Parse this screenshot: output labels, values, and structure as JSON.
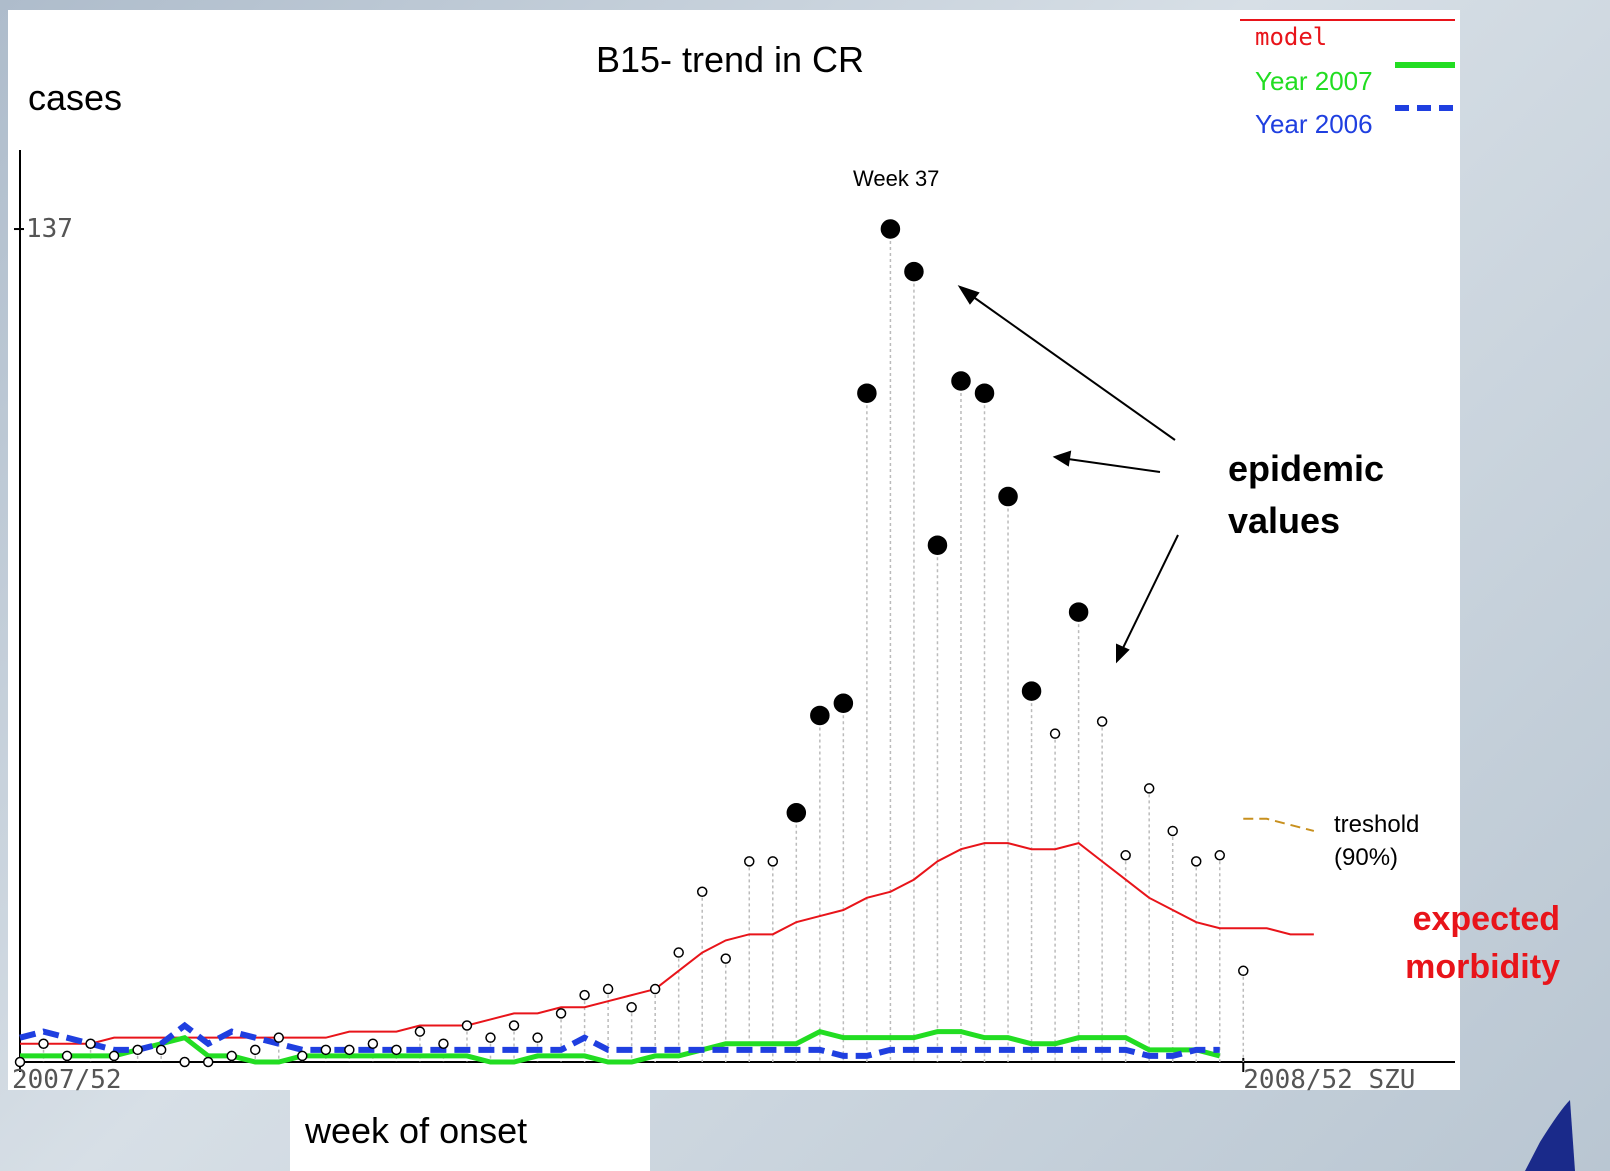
{
  "chart_data": {
    "type": "line",
    "title": "B15- trend in CR",
    "y_label": "cases",
    "x_label": "week of onset",
    "ylim": [
      0,
      150
    ],
    "yticks": [
      137
    ],
    "xlim": [
      0,
      61
    ],
    "xticks": [
      {
        "value": 0,
        "label": "2007/52"
      },
      {
        "value": 52,
        "label": "2008/52 SZU"
      }
    ],
    "annotations": {
      "peak": "Week 37",
      "epidemic": "epidemic values",
      "threshold": "treshold (90%)",
      "expected": "expected morbidity"
    },
    "series": [
      {
        "name": "model",
        "color": "#e8141a",
        "style": "solid",
        "values": [
          3,
          3,
          3,
          3,
          4,
          4,
          4,
          4,
          4,
          4,
          4,
          4,
          4,
          4,
          5,
          5,
          5,
          6,
          6,
          6,
          7,
          8,
          8,
          9,
          9,
          10,
          11,
          12,
          15,
          18,
          20,
          21,
          21,
          23,
          24,
          25,
          27,
          28,
          30,
          33,
          35,
          36,
          36,
          35,
          35,
          36,
          33,
          30,
          27,
          25,
          23,
          22,
          22,
          22,
          21,
          21
        ]
      },
      {
        "name": "Year 2007",
        "color": "#22dd22",
        "style": "solid",
        "values": [
          1,
          1,
          1,
          1,
          1,
          2,
          3,
          4,
          1,
          1,
          0,
          0,
          1,
          1,
          1,
          1,
          1,
          1,
          1,
          1,
          0,
          0,
          1,
          1,
          1,
          0,
          0,
          1,
          1,
          2,
          3,
          3,
          3,
          3,
          5,
          4,
          4,
          4,
          4,
          5,
          5,
          4,
          4,
          3,
          3,
          4,
          4,
          4,
          2,
          2,
          2,
          1,
          null,
          null,
          null,
          null
        ]
      },
      {
        "name": "Year 2006",
        "color": "#1f3fe0",
        "style": "dashed",
        "values": [
          4,
          5,
          4,
          3,
          2,
          2,
          3,
          6,
          3,
          5,
          4,
          3,
          2,
          2,
          2,
          2,
          2,
          2,
          2,
          2,
          2,
          2,
          2,
          2,
          4,
          2,
          2,
          2,
          2,
          2,
          2,
          2,
          2,
          2,
          2,
          1,
          1,
          2,
          2,
          2,
          2,
          2,
          2,
          2,
          2,
          2,
          2,
          2,
          1,
          1,
          2,
          2,
          null,
          null,
          null,
          null
        ]
      },
      {
        "name": "threshold",
        "color": "#c8901e",
        "style": "dotted",
        "values": [
          null,
          null,
          null,
          null,
          null,
          null,
          null,
          null,
          null,
          null,
          null,
          null,
          null,
          null,
          null,
          null,
          null,
          null,
          null,
          null,
          null,
          null,
          null,
          null,
          null,
          null,
          null,
          null,
          null,
          null,
          null,
          null,
          null,
          null,
          null,
          null,
          null,
          null,
          null,
          null,
          null,
          null,
          null,
          null,
          null,
          null,
          null,
          null,
          null,
          null,
          null,
          null,
          40,
          40,
          39,
          38
        ]
      }
    ],
    "points": {
      "values": [
        0,
        3,
        1,
        3,
        1,
        2,
        2,
        0,
        0,
        1,
        2,
        4,
        1,
        2,
        2,
        3,
        2,
        5,
        3,
        6,
        4,
        6,
        4,
        8,
        11,
        12,
        9,
        12,
        18,
        28,
        17,
        33,
        33,
        41,
        57,
        59,
        110,
        137,
        130,
        85,
        112,
        110,
        93,
        61,
        54,
        74,
        56,
        34,
        45,
        38,
        33,
        34,
        15,
        null,
        null,
        null
      ],
      "epidemic": [
        false,
        false,
        false,
        false,
        false,
        false,
        false,
        false,
        false,
        false,
        false,
        false,
        false,
        false,
        false,
        false,
        false,
        false,
        false,
        false,
        false,
        false,
        false,
        false,
        false,
        false,
        false,
        false,
        false,
        false,
        false,
        false,
        false,
        true,
        true,
        true,
        true,
        true,
        true,
        true,
        true,
        true,
        true,
        true,
        false,
        true,
        false,
        false,
        false,
        false,
        false,
        false,
        false,
        false,
        false,
        false
      ]
    }
  }
}
